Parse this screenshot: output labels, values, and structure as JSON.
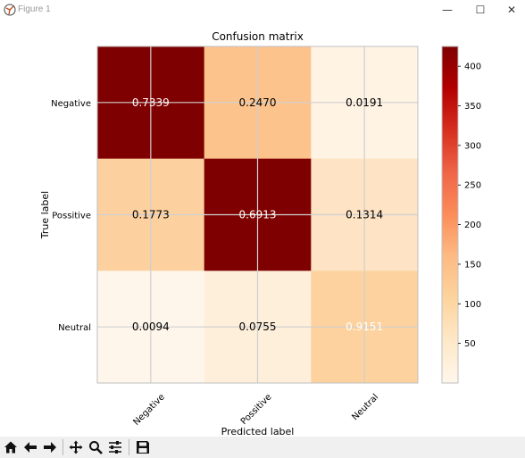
{
  "window": {
    "title": "Figure 1",
    "icons": [
      "matplotlib-icon",
      "minimize-icon",
      "maximize-icon",
      "close-icon"
    ],
    "controls": {
      "minimize": "—",
      "maximize": "☐",
      "close": "✕"
    }
  },
  "toolbar": {
    "items": [
      "home-icon",
      "back-icon",
      "forward-icon",
      "pan-icon",
      "zoom-icon",
      "configure-subplots-icon",
      "save-icon"
    ]
  },
  "chart_data": {
    "type": "heatmap",
    "title": "Confusion matrix",
    "xlabel": "Predicted label",
    "ylabel": "True label",
    "x_categories": [
      "Negative",
      "Possitive",
      "Neutral"
    ],
    "y_categories": [
      "Negative",
      "Possitive",
      "Neutral"
    ],
    "values": [
      [
        0.7339,
        0.247,
        0.0191
      ],
      [
        0.1773,
        0.6913,
        0.1314
      ],
      [
        0.0094,
        0.0755,
        0.9151
      ]
    ],
    "value_labels": [
      [
        "0.7339",
        "0.2470",
        "0.0191"
      ],
      [
        "0.1773",
        "0.6913",
        "0.1314"
      ],
      [
        "0.0094",
        "0.0755",
        "0.9151"
      ]
    ],
    "colormap": "OrRd",
    "colorbar": {
      "ticks": [
        50,
        100,
        150,
        200,
        250,
        300,
        350,
        400
      ],
      "range": [
        0,
        425
      ]
    },
    "cell_colors": [
      [
        "#7f0000",
        "#fdc38d",
        "#fff3e4"
      ],
      [
        "#fdd09f",
        "#7f0000",
        "#fee3c4"
      ],
      [
        "#fff6eb",
        "#feefda",
        "#fdd29e"
      ]
    ],
    "text_colors": [
      [
        "#ffffff",
        "#000000",
        "#000000"
      ],
      [
        "#000000",
        "#ffffff",
        "#000000"
      ],
      [
        "#000000",
        "#000000",
        "#ffffff"
      ]
    ],
    "grid": true
  }
}
